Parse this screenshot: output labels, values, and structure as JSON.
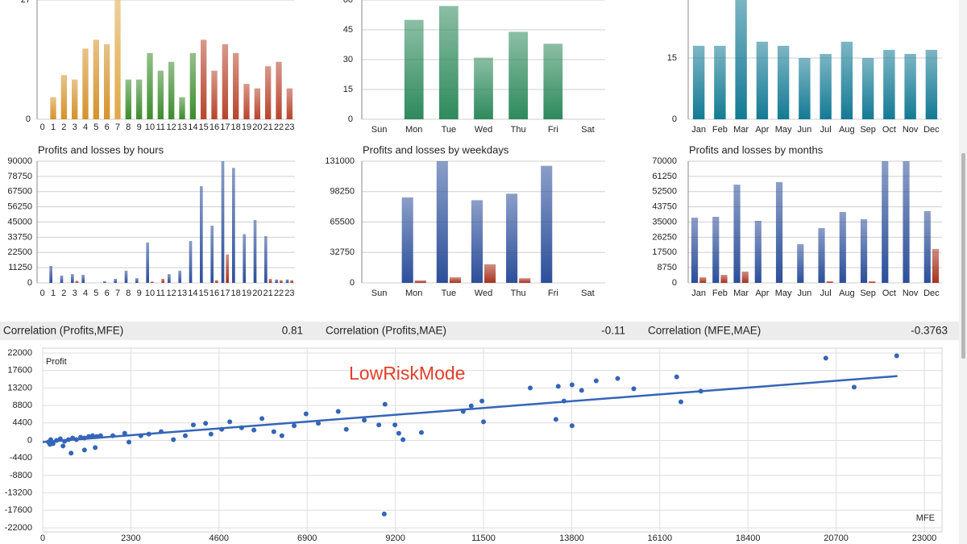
{
  "chart_data": [
    {
      "type": "bar",
      "categories": [
        "0",
        "1",
        "2",
        "3",
        "4",
        "5",
        "6",
        "7",
        "8",
        "9",
        "10",
        "11",
        "12",
        "13",
        "14",
        "15",
        "16",
        "17",
        "18",
        "19",
        "20",
        "21",
        "22",
        "23"
      ],
      "values": [
        0,
        5,
        10,
        9,
        16,
        18,
        17,
        27,
        9,
        9,
        15,
        11,
        13,
        5,
        15,
        18,
        11,
        17,
        15,
        8,
        7,
        12,
        13,
        7
      ],
      "colors": [
        "#d4922a",
        "#d4922a",
        "#d4922a",
        "#d4922a",
        "#d4922a",
        "#d4922a",
        "#d4922a",
        "#e0a848",
        "#3c8c2c",
        "#3c8c2c",
        "#3c8c2c",
        "#3c8c2c",
        "#3c8c2c",
        "#3c8c2c",
        "#3c8c2c",
        "#b8442c",
        "#b8442c",
        "#b8442c",
        "#b8442c",
        "#b8442c",
        "#b8442c",
        "#b8442c",
        "#b8442c",
        "#b8442c"
      ],
      "ylim": [
        0,
        27
      ],
      "yticks": [
        0,
        27
      ],
      "grid": true
    },
    {
      "type": "bar",
      "categories": [
        "Sun",
        "Mon",
        "Tue",
        "Wed",
        "Thu",
        "Fri",
        "Sat"
      ],
      "values": [
        0,
        50,
        57,
        31,
        44,
        38,
        0
      ],
      "color": "#2e8a5c",
      "ylim": [
        0,
        60
      ],
      "yticks": [
        0,
        15,
        30,
        45,
        60
      ],
      "grid": true
    },
    {
      "type": "bar",
      "categories": [
        "Jan",
        "Feb",
        "Mar",
        "Apr",
        "May",
        "Jun",
        "Jul",
        "Aug",
        "Sep",
        "Oct",
        "Nov",
        "Dec"
      ],
      "values": [
        18,
        18,
        30,
        19,
        18,
        15,
        16,
        19,
        15,
        17,
        16,
        17
      ],
      "color": "#137a94",
      "ylim": [
        0,
        30
      ],
      "yticks": [
        0,
        15,
        30
      ],
      "grid": true
    },
    {
      "type": "bar",
      "title": "Profits and losses by hours",
      "categories": [
        "0",
        "1",
        "2",
        "3",
        "4",
        "5",
        "6",
        "7",
        "8",
        "9",
        "10",
        "11",
        "12",
        "13",
        "14",
        "15",
        "16",
        "17",
        "18",
        "19",
        "20",
        "21",
        "22",
        "23"
      ],
      "series": [
        {
          "color": "#2c4f9a",
          "values": [
            0,
            12500,
            5400,
            6500,
            6000,
            0,
            1200,
            3000,
            9000,
            3500,
            29800,
            0,
            6500,
            9000,
            31000,
            71500,
            42300,
            90000,
            85000,
            36000,
            46500,
            34500,
            2500,
            2500
          ]
        },
        {
          "color": "#a8321e",
          "values": [
            0,
            0,
            0,
            1500,
            0,
            0,
            0,
            0,
            0,
            0,
            1000,
            3000,
            0,
            0,
            0,
            0,
            2000,
            21000,
            0,
            0,
            0,
            3000,
            2000,
            2000
          ]
        }
      ],
      "ylim": [
        0,
        90000
      ],
      "yticks": [
        0,
        11250,
        22500,
        33750,
        45000,
        56250,
        67500,
        78750,
        90000
      ],
      "grid": true
    },
    {
      "type": "bar",
      "title": "Profits and losses by weekdays",
      "categories": [
        "Sun",
        "Mon",
        "Tue",
        "Wed",
        "Thu",
        "Fri",
        "Sat"
      ],
      "series": [
        {
          "color": "#2c4f9a",
          "values": [
            0,
            92000,
            131000,
            89000,
            96000,
            126000,
            0
          ]
        },
        {
          "color": "#a8321e",
          "values": [
            0,
            2600,
            6000,
            20000,
            5000,
            0,
            0
          ]
        }
      ],
      "ylim": [
        0,
        131000
      ],
      "yticks": [
        0,
        32750,
        65500,
        98250,
        131000
      ],
      "grid": true
    },
    {
      "type": "bar",
      "title": "Profits and losses by months",
      "categories": [
        "Jan",
        "Feb",
        "Mar",
        "Apr",
        "May",
        "Jun",
        "Jul",
        "Aug",
        "Sep",
        "Oct",
        "Nov",
        "Dec"
      ],
      "series": [
        {
          "color": "#2c4f9a",
          "values": [
            37500,
            38000,
            56500,
            35700,
            58000,
            22300,
            31500,
            40800,
            36600,
            70000,
            70000,
            41300
          ]
        },
        {
          "color": "#a8321e",
          "values": [
            3200,
            4600,
            6500,
            0,
            0,
            0,
            900,
            0,
            900,
            0,
            0,
            19500
          ]
        }
      ],
      "ylim": [
        0,
        70000
      ],
      "yticks": [
        0,
        8750,
        17500,
        26250,
        35000,
        43750,
        52500,
        61250,
        70000
      ],
      "grid": true
    },
    {
      "type": "scatter",
      "ylabel": "Profit",
      "xlabel": "MFE",
      "annotation": "LowRiskMode",
      "color": "#3465b8",
      "x": [
        150,
        210,
        270,
        360,
        460,
        570,
        670,
        780,
        880,
        990,
        1090,
        1200,
        1300,
        1410,
        1510,
        530,
        740,
        1090,
        1370,
        190,
        1830,
        2140,
        2250,
        2560,
        2770,
        3090,
        3410,
        3720,
        3930,
        4250,
        4390,
        4670,
        4880,
        5190,
        5510,
        5720,
        6030,
        6240,
        6560,
        6870,
        7190,
        7710,
        7920,
        8390,
        8770,
        8930,
        9190,
        9290,
        9400,
        9880,
        10970,
        11180,
        11460,
        11500,
        12720,
        13390,
        13450,
        13600,
        13810,
        13810,
        14060,
        14440,
        15000,
        15420,
        16540,
        16650,
        17170,
        20430,
        21170,
        22280,
        8910
      ],
      "y": [
        -400,
        200,
        -800,
        0,
        400,
        -200,
        200,
        600,
        200,
        800,
        600,
        1000,
        1200,
        1000,
        1200,
        -1400,
        -3200,
        -2400,
        -1800,
        -1000,
        1200,
        1800,
        -400,
        1200,
        1600,
        2200,
        200,
        1200,
        3900,
        4300,
        1600,
        2800,
        4700,
        3200,
        2600,
        5500,
        2200,
        1200,
        3700,
        6700,
        4300,
        7300,
        2800,
        5100,
        3900,
        9100,
        3900,
        1800,
        200,
        2000,
        7300,
        8700,
        9900,
        4700,
        13200,
        5300,
        13600,
        9900,
        14000,
        3700,
        12600,
        15000,
        15600,
        13000,
        16000,
        9700,
        12400,
        20700,
        13400,
        21300,
        -18500
      ],
      "trendline": {
        "color": "#3465b8",
        "x": [
          0,
          22300
        ],
        "y": [
          -400,
          16200
        ]
      },
      "xlim": [
        0,
        23000
      ],
      "xticks": [
        0,
        2300,
        4600,
        6900,
        9200,
        11500,
        13800,
        16100,
        18400,
        20700,
        23000
      ],
      "ylim": [
        -22000,
        22000
      ],
      "yticks": [
        22000,
        17600,
        13200,
        8800,
        4400,
        0,
        -4400,
        -8800,
        -13200,
        -17600,
        -22000
      ],
      "grid": true
    }
  ],
  "correlations": [
    {
      "label": "Correlation (Profits,MFE)",
      "value": 0.81
    },
    {
      "label": "Correlation (Profits,MAE)",
      "value": -0.11
    },
    {
      "label": "Correlation (MFE,MAE)",
      "value": -0.3763
    }
  ]
}
